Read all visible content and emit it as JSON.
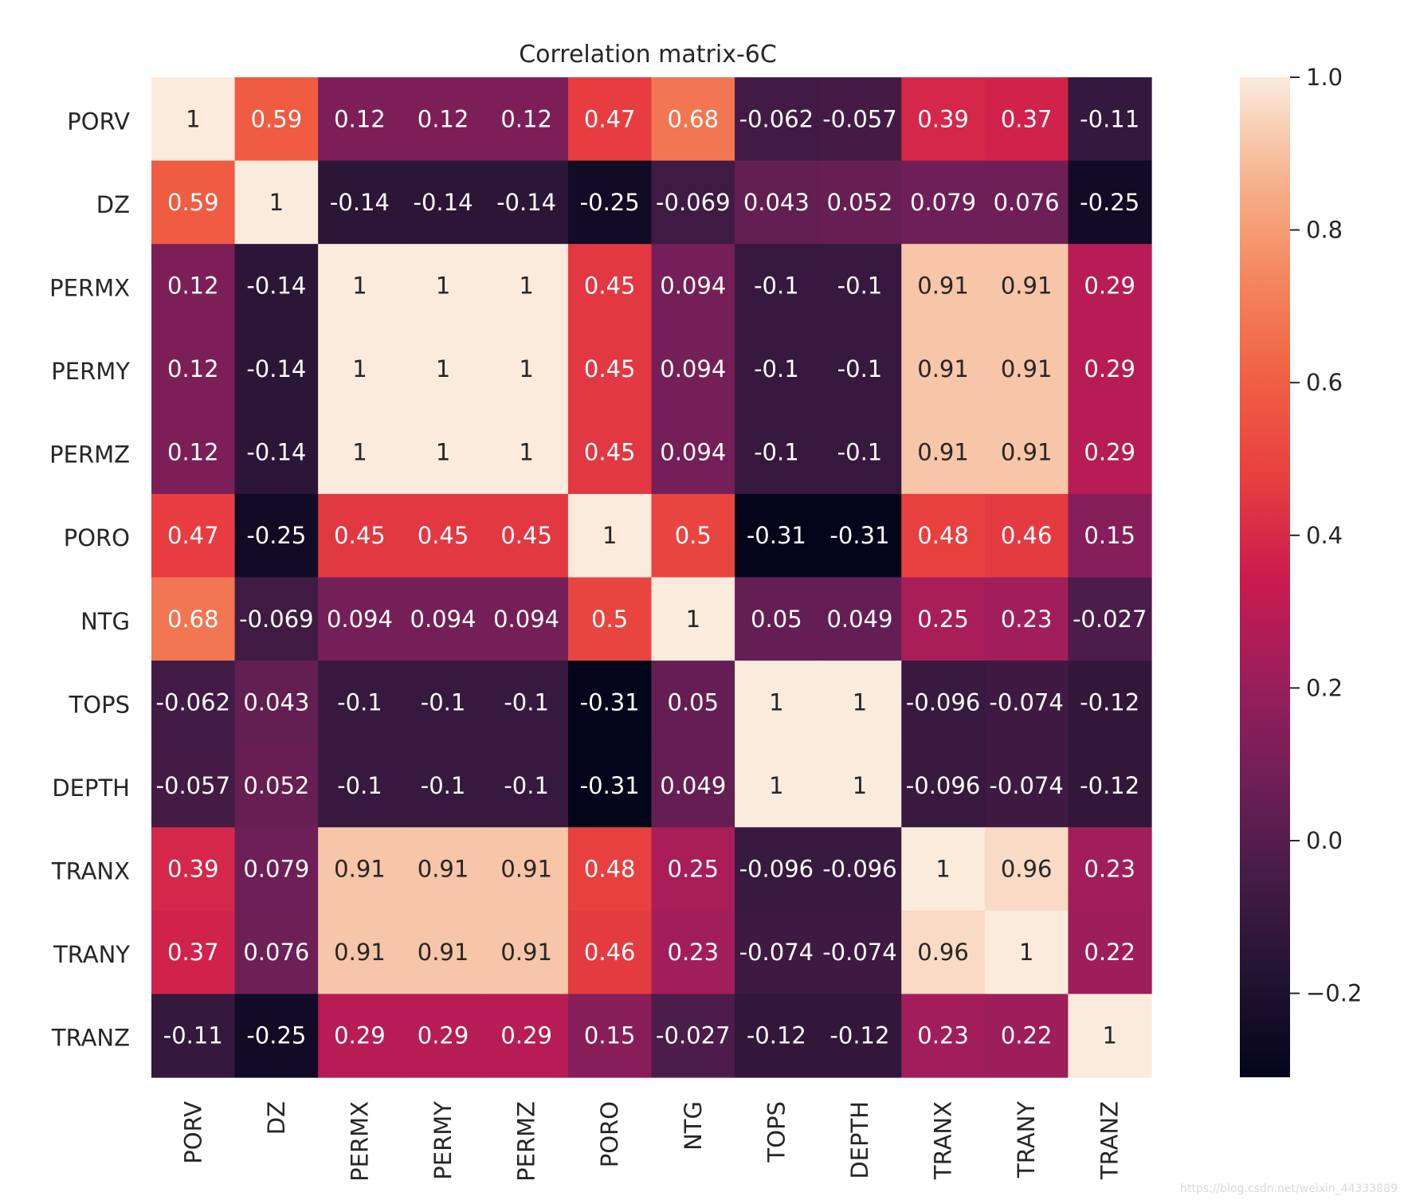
{
  "chart_data": {
    "type": "heatmap",
    "title": "Correlation matrix-6C",
    "xlabel": "",
    "ylabel": "",
    "x_labels": [
      "PORV",
      "DZ",
      "PERMX",
      "PERMY",
      "PERMZ",
      "PORO",
      "NTG",
      "TOPS",
      "DEPTH",
      "TRANX",
      "TRANY",
      "TRANZ"
    ],
    "y_labels": [
      "PORV",
      "DZ",
      "PERMX",
      "PERMY",
      "PERMZ",
      "PORO",
      "NTG",
      "TOPS",
      "DEPTH",
      "TRANX",
      "TRANY",
      "TRANZ"
    ],
    "cell_labels": [
      [
        "1",
        "0.59",
        "0.12",
        "0.12",
        "0.12",
        "0.47",
        "0.68",
        "-0.062",
        "-0.057",
        "0.39",
        "0.37",
        "-0.11"
      ],
      [
        "0.59",
        "1",
        "-0.14",
        "-0.14",
        "-0.14",
        "-0.25",
        "-0.069",
        "0.043",
        "0.052",
        "0.079",
        "0.076",
        "-0.25"
      ],
      [
        "0.12",
        "-0.14",
        "1",
        "1",
        "1",
        "0.45",
        "0.094",
        "-0.1",
        "-0.1",
        "0.91",
        "0.91",
        "0.29"
      ],
      [
        "0.12",
        "-0.14",
        "1",
        "1",
        "1",
        "0.45",
        "0.094",
        "-0.1",
        "-0.1",
        "0.91",
        "0.91",
        "0.29"
      ],
      [
        "0.12",
        "-0.14",
        "1",
        "1",
        "1",
        "0.45",
        "0.094",
        "-0.1",
        "-0.1",
        "0.91",
        "0.91",
        "0.29"
      ],
      [
        "0.47",
        "-0.25",
        "0.45",
        "0.45",
        "0.45",
        "1",
        "0.5",
        "-0.31",
        "-0.31",
        "0.48",
        "0.46",
        "0.15"
      ],
      [
        "0.68",
        "-0.069",
        "0.094",
        "0.094",
        "0.094",
        "0.5",
        "1",
        "0.05",
        "0.049",
        "0.25",
        "0.23",
        "-0.027"
      ],
      [
        "-0.062",
        "0.043",
        "-0.1",
        "-0.1",
        "-0.1",
        "-0.31",
        "0.05",
        "1",
        "1",
        "-0.096",
        "-0.074",
        "-0.12"
      ],
      [
        "-0.057",
        "0.052",
        "-0.1",
        "-0.1",
        "-0.1",
        "-0.31",
        "0.049",
        "1",
        "1",
        "-0.096",
        "-0.074",
        "-0.12"
      ],
      [
        "0.39",
        "0.079",
        "0.91",
        "0.91",
        "0.91",
        "0.48",
        "0.25",
        "-0.096",
        "-0.096",
        "1",
        "0.96",
        "0.23"
      ],
      [
        "0.37",
        "0.076",
        "0.91",
        "0.91",
        "0.91",
        "0.46",
        "0.23",
        "-0.074",
        "-0.074",
        "0.96",
        "1",
        "0.22"
      ],
      [
        "-0.11",
        "-0.25",
        "0.29",
        "0.29",
        "0.29",
        "0.15",
        "-0.027",
        "-0.12",
        "-0.12",
        "0.23",
        "0.22",
        "1"
      ]
    ],
    "vmin": -0.31,
    "vmax": 1.0,
    "colorbar": {
      "ticks": [
        1.0,
        0.8,
        0.6,
        0.4,
        0.2,
        0.0,
        -0.2
      ],
      "tick_labels": [
        "1.0",
        "0.8",
        "0.6",
        "0.4",
        "0.2",
        "0.0",
        "−0.2"
      ]
    },
    "colormap": "rocket",
    "colormap_stops": [
      {
        "v": 0.0,
        "color": "#03051a"
      },
      {
        "v": 0.1,
        "color": "#221331"
      },
      {
        "v": 0.2,
        "color": "#451c47"
      },
      {
        "v": 0.3,
        "color": "#701f57"
      },
      {
        "v": 0.4,
        "color": "#9c1e5b"
      },
      {
        "v": 0.5,
        "color": "#cb1b4f"
      },
      {
        "v": 0.6,
        "color": "#e83f3f"
      },
      {
        "v": 0.7,
        "color": "#f06043"
      },
      {
        "v": 0.8,
        "color": "#f4875e"
      },
      {
        "v": 0.9,
        "color": "#f6b48e"
      },
      {
        "v": 1.0,
        "color": "#faebdd"
      }
    ],
    "grid": false,
    "legend": "colorbar-right"
  },
  "watermark": "https://blog.csdn.net/weixin_44333889"
}
